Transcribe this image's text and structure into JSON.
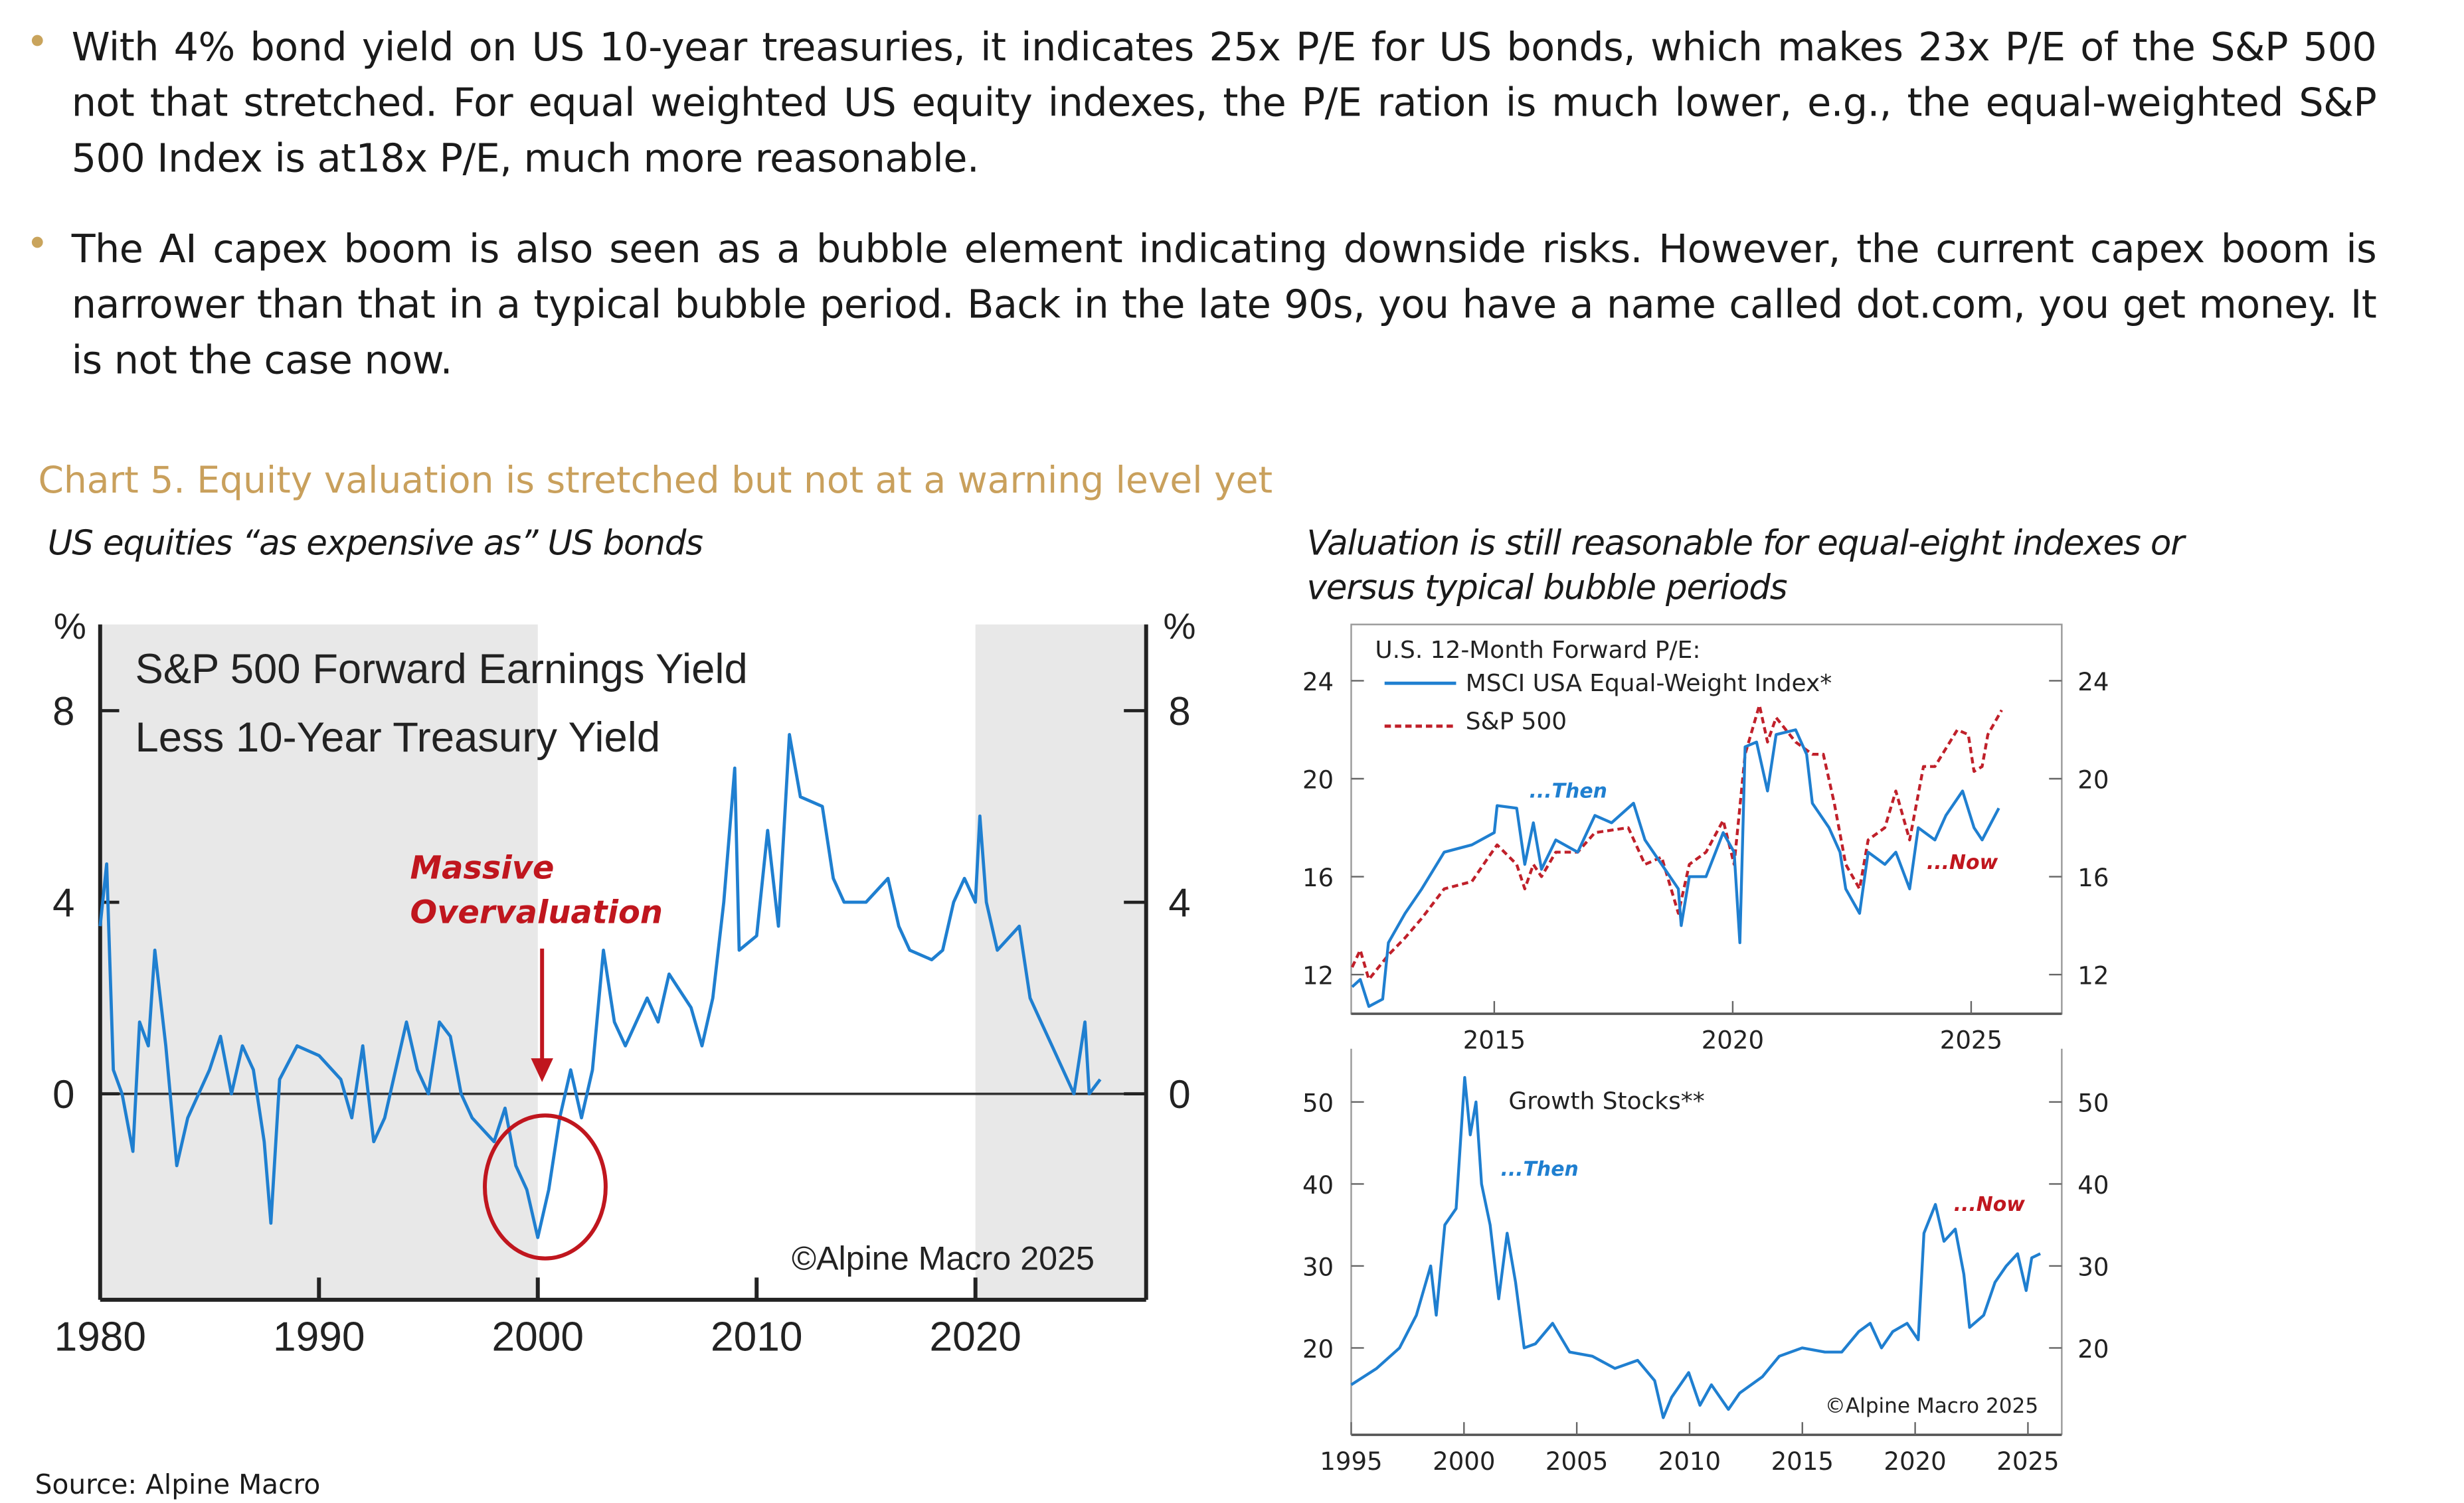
{
  "bullets": [
    "With 4% bond yield on US 10-year treasuries, it indicates 25x P/E for US bonds, which makes 23x P/E of the S&P 500 not that stretched. For equal weighted US equity indexes, the P/E ration is much lower, e.g., the equal-weighted S&P 500 Index is at18x P/E, much more reasonable.",
    "The AI capex boom is also seen as a bubble element indicating downside risks. However, the current capex boom is narrower than that in a typical bubble period. Back in the late 90s, you have a name called dot.com, you get money. It is not the case now."
  ],
  "colors": {
    "bullet": "#c9a45c",
    "title": "#c9a05c",
    "line_blue": "#1f7fd0",
    "line_red": "#c0202a",
    "shade": "#e8e8e8",
    "annot_red": "#c0161e",
    "annot_blue": "#1f7fd0"
  },
  "chart_title": "Chart 5. Equity valuation is stretched but not at a warning level yet",
  "left_subtitle": "US equities  “as expensive as” US bonds",
  "right_subtitle": "Valuation is still reasonable for equal-eight indexes or versus typical bubble periods",
  "source": "Source: Alpine Macro",
  "chart_data": [
    {
      "type": "line",
      "title": "S&P 500 Forward Earnings Yield",
      "title_line2": "Less 10-Year Treasury Yield",
      "ylabel_left": "%",
      "ylabel_right": "%",
      "xlim": [
        1980,
        2027.8
      ],
      "ylim": [
        -4.3,
        9.8
      ],
      "xticks": [
        1980,
        1990,
        2000,
        2010,
        2020
      ],
      "yticks": [
        0,
        4,
        8
      ],
      "shaded_periods": [
        [
          1980,
          2000
        ],
        [
          2020,
          2027.8
        ]
      ],
      "annotation": "Massive",
      "annotation_line2": "Overvaluation",
      "copyright": "©Alpine Macro 2025",
      "series": [
        {
          "color": "#1f7fd0",
          "points": [
            [
              1980,
              3.5
            ],
            [
              1980.3,
              4.8
            ],
            [
              1980.6,
              0.5
            ],
            [
              1981,
              0
            ],
            [
              1981.5,
              -1.2
            ],
            [
              1981.8,
              1.5
            ],
            [
              1982.2,
              1.0
            ],
            [
              1982.5,
              3.0
            ],
            [
              1983,
              1
            ],
            [
              1983.5,
              -1.5
            ],
            [
              1984,
              -0.5
            ],
            [
              1985,
              0.5
            ],
            [
              1985.5,
              1.2
            ],
            [
              1986,
              0
            ],
            [
              1986.5,
              1.0
            ],
            [
              1987,
              0.5
            ],
            [
              1987.5,
              -1.0
            ],
            [
              1987.8,
              -2.7
            ],
            [
              1988.2,
              0.3
            ],
            [
              1989,
              1.0
            ],
            [
              1990,
              0.8
            ],
            [
              1991,
              0.3
            ],
            [
              1991.5,
              -0.5
            ],
            [
              1992,
              1.0
            ],
            [
              1992.5,
              -1.0
            ],
            [
              1993,
              -0.5
            ],
            [
              1994,
              1.5
            ],
            [
              1994.5,
              0.5
            ],
            [
              1995,
              0.0
            ],
            [
              1995.5,
              1.5
            ],
            [
              1996,
              1.2
            ],
            [
              1996.5,
              0
            ],
            [
              1997,
              -0.5
            ],
            [
              1998,
              -1.0
            ],
            [
              1998.5,
              -0.3
            ],
            [
              1999,
              -1.5
            ],
            [
              1999.5,
              -2.0
            ],
            [
              2000,
              -3.0
            ],
            [
              2000.5,
              -2.0
            ],
            [
              2001,
              -0.5
            ],
            [
              2001.5,
              0.5
            ],
            [
              2002,
              -0.5
            ],
            [
              2002.5,
              0.5
            ],
            [
              2003,
              3.0
            ],
            [
              2003.5,
              1.5
            ],
            [
              2004,
              1.0
            ],
            [
              2005,
              2.0
            ],
            [
              2005.5,
              1.5
            ],
            [
              2006,
              2.5
            ],
            [
              2007,
              1.8
            ],
            [
              2007.5,
              1.0
            ],
            [
              2008,
              2.0
            ],
            [
              2008.5,
              4.0
            ],
            [
              2009,
              6.8
            ],
            [
              2009.2,
              3.0
            ],
            [
              2010,
              3.3
            ],
            [
              2010.5,
              5.5
            ],
            [
              2011,
              3.5
            ],
            [
              2011.5,
              7.5
            ],
            [
              2012,
              6.2
            ],
            [
              2013,
              6.0
            ],
            [
              2013.5,
              4.5
            ],
            [
              2014,
              4.0
            ],
            [
              2015,
              4.0
            ],
            [
              2016,
              4.5
            ],
            [
              2016.5,
              3.5
            ],
            [
              2017,
              3.0
            ],
            [
              2018,
              2.8
            ],
            [
              2018.5,
              3.0
            ],
            [
              2019,
              4.0
            ],
            [
              2019.5,
              4.5
            ],
            [
              2020,
              4.0
            ],
            [
              2020.2,
              5.8
            ],
            [
              2020.5,
              4.0
            ],
            [
              2021,
              3.0
            ],
            [
              2022,
              3.5
            ],
            [
              2022.5,
              2.0
            ],
            [
              2023,
              1.5
            ],
            [
              2023.5,
              1.0
            ],
            [
              2024,
              0.5
            ],
            [
              2024.5,
              0
            ],
            [
              2025,
              1.5
            ],
            [
              2025.2,
              0
            ],
            [
              2025.7,
              0.3
            ]
          ]
        }
      ]
    },
    {
      "type": "line",
      "title": "U.S. 12-Month Forward P/E:",
      "xlim": [
        2012,
        2026.9
      ],
      "ylim": [
        10.4,
        26.3
      ],
      "xticks": [
        2015,
        2020,
        2025
      ],
      "yticks": [
        12,
        16,
        20,
        24
      ],
      "annotation_then": "...Then",
      "annotation_now": "...Now",
      "series": [
        {
          "name": "MSCI USA Equal-Weight Index*",
          "color": "#1f7fd0",
          "dash": false,
          "points": [
            [
              2012.02,
              11.5
            ],
            [
              2012.19,
              11.8
            ],
            [
              2012.37,
              10.7
            ],
            [
              2012.66,
              11.0
            ],
            [
              2012.78,
              13.3
            ],
            [
              2013.13,
              14.5
            ],
            [
              2013.48,
              15.5
            ],
            [
              2013.95,
              17.0
            ],
            [
              2014.53,
              17.3
            ],
            [
              2015,
              17.8
            ],
            [
              2015.06,
              18.9
            ],
            [
              2015.47,
              18.8
            ],
            [
              2015.64,
              16.5
            ],
            [
              2015.82,
              18.2
            ],
            [
              2015.99,
              16.3
            ],
            [
              2016.29,
              17.5
            ],
            [
              2016.75,
              17.0
            ],
            [
              2017.11,
              18.5
            ],
            [
              2017.46,
              18.2
            ],
            [
              2017.92,
              19.0
            ],
            [
              2018.16,
              17.5
            ],
            [
              2018.51,
              16.5
            ],
            [
              2018.86,
              15.5
            ],
            [
              2018.92,
              14.0
            ],
            [
              2019.09,
              16.0
            ],
            [
              2019.44,
              16.0
            ],
            [
              2019.8,
              17.8
            ],
            [
              2020.03,
              17.0
            ],
            [
              2020.15,
              13.3
            ],
            [
              2020.26,
              21.3
            ],
            [
              2020.5,
              21.5
            ],
            [
              2020.73,
              19.5
            ],
            [
              2020.91,
              21.8
            ],
            [
              2021.32,
              22.0
            ],
            [
              2021.55,
              21.0
            ],
            [
              2021.67,
              19.0
            ],
            [
              2022.02,
              18.0
            ],
            [
              2022.25,
              17.0
            ],
            [
              2022.37,
              15.5
            ],
            [
              2022.66,
              14.5
            ],
            [
              2022.84,
              17.0
            ],
            [
              2023.19,
              16.5
            ],
            [
              2023.42,
              17.0
            ],
            [
              2023.71,
              15.5
            ],
            [
              2023.89,
              18.0
            ],
            [
              2024.24,
              17.5
            ],
            [
              2024.47,
              18.5
            ],
            [
              2024.82,
              19.5
            ],
            [
              2025.06,
              18.0
            ],
            [
              2025.23,
              17.5
            ],
            [
              2025.58,
              18.8
            ]
          ]
        },
        {
          "name": "S&P 500",
          "color": "#c0202a",
          "dash": true,
          "points": [
            [
              2012.02,
              12.3
            ],
            [
              2012.19,
              13.0
            ],
            [
              2012.37,
              11.8
            ],
            [
              2012.78,
              12.8
            ],
            [
              2013.13,
              13.5
            ],
            [
              2013.48,
              14.3
            ],
            [
              2013.95,
              15.5
            ],
            [
              2014.53,
              15.8
            ],
            [
              2014.88,
              16.8
            ],
            [
              2015.06,
              17.3
            ],
            [
              2015.47,
              16.5
            ],
            [
              2015.64,
              15.5
            ],
            [
              2015.82,
              16.5
            ],
            [
              2015.99,
              16.0
            ],
            [
              2016.29,
              17.0
            ],
            [
              2016.75,
              17.0
            ],
            [
              2017.11,
              17.8
            ],
            [
              2017.81,
              18.0
            ],
            [
              2018.16,
              16.5
            ],
            [
              2018.51,
              16.8
            ],
            [
              2018.86,
              14.5
            ],
            [
              2019.09,
              16.5
            ],
            [
              2019.44,
              17.0
            ],
            [
              2019.8,
              18.3
            ],
            [
              2020.03,
              16.5
            ],
            [
              2020.26,
              21.0
            ],
            [
              2020.56,
              23.0
            ],
            [
              2020.73,
              21.5
            ],
            [
              2020.91,
              22.5
            ],
            [
              2021.32,
              21.5
            ],
            [
              2021.67,
              21.0
            ],
            [
              2021.9,
              21.0
            ],
            [
              2022.13,
              19.0
            ],
            [
              2022.37,
              16.5
            ],
            [
              2022.66,
              15.5
            ],
            [
              2022.84,
              17.5
            ],
            [
              2023.19,
              18.0
            ],
            [
              2023.42,
              19.5
            ],
            [
              2023.71,
              17.5
            ],
            [
              2024.0,
              20.5
            ],
            [
              2024.24,
              20.5
            ],
            [
              2024.71,
              22.0
            ],
            [
              2024.94,
              21.8
            ],
            [
              2025.06,
              20.3
            ],
            [
              2025.23,
              20.5
            ],
            [
              2025.35,
              21.8
            ],
            [
              2025.64,
              22.8
            ]
          ]
        }
      ]
    },
    {
      "type": "line",
      "title": "Growth Stocks**",
      "xlim": [
        1995,
        2026.5
      ],
      "ylim": [
        9.4,
        56.5
      ],
      "xticks": [
        1995,
        2000,
        2005,
        2010,
        2015,
        2020,
        2025
      ],
      "yticks": [
        20,
        30,
        40,
        50
      ],
      "annotation_then": "...Then",
      "annotation_now": "...Now",
      "copyright": "©Alpine Macro 2025",
      "series": [
        {
          "color": "#1f7fd0",
          "points": [
            [
              1995,
              15.5
            ],
            [
              1996.13,
              17.5
            ],
            [
              1997.14,
              20
            ],
            [
              1997.89,
              24
            ],
            [
              1998.52,
              30
            ],
            [
              1998.77,
              24
            ],
            [
              1999.15,
              35
            ],
            [
              1999.65,
              37
            ],
            [
              2000.03,
              53
            ],
            [
              2000.28,
              46
            ],
            [
              2000.53,
              50
            ],
            [
              2000.78,
              40
            ],
            [
              2001.16,
              35
            ],
            [
              2001.54,
              26
            ],
            [
              2001.91,
              34
            ],
            [
              2002.29,
              28
            ],
            [
              2002.67,
              20
            ],
            [
              2003.17,
              20.5
            ],
            [
              2003.93,
              23
            ],
            [
              2004.68,
              19.5
            ],
            [
              2005.69,
              19
            ],
            [
              2006.69,
              17.5
            ],
            [
              2007.7,
              18.5
            ],
            [
              2008.45,
              16
            ],
            [
              2008.83,
              11.5
            ],
            [
              2009.21,
              14
            ],
            [
              2009.96,
              17
            ],
            [
              2010.46,
              13
            ],
            [
              2010.97,
              15.5
            ],
            [
              2011.72,
              12.5
            ],
            [
              2012.22,
              14.5
            ],
            [
              2013.23,
              16.5
            ],
            [
              2013.98,
              19
            ],
            [
              2014.99,
              20
            ],
            [
              2016.0,
              19.5
            ],
            [
              2016.75,
              19.5
            ],
            [
              2017.5,
              22
            ],
            [
              2018.01,
              23
            ],
            [
              2018.51,
              20
            ],
            [
              2019.01,
              22
            ],
            [
              2019.64,
              23
            ],
            [
              2020.14,
              21
            ],
            [
              2020.39,
              34
            ],
            [
              2020.9,
              37.5
            ],
            [
              2021.28,
              33
            ],
            [
              2021.78,
              34.5
            ],
            [
              2022.16,
              29
            ],
            [
              2022.41,
              22.5
            ],
            [
              2023.04,
              24
            ],
            [
              2023.54,
              28
            ],
            [
              2024.04,
              30
            ],
            [
              2024.54,
              31.5
            ],
            [
              2024.92,
              27
            ],
            [
              2025.17,
              31
            ],
            [
              2025.55,
              31.5
            ]
          ]
        }
      ]
    }
  ]
}
